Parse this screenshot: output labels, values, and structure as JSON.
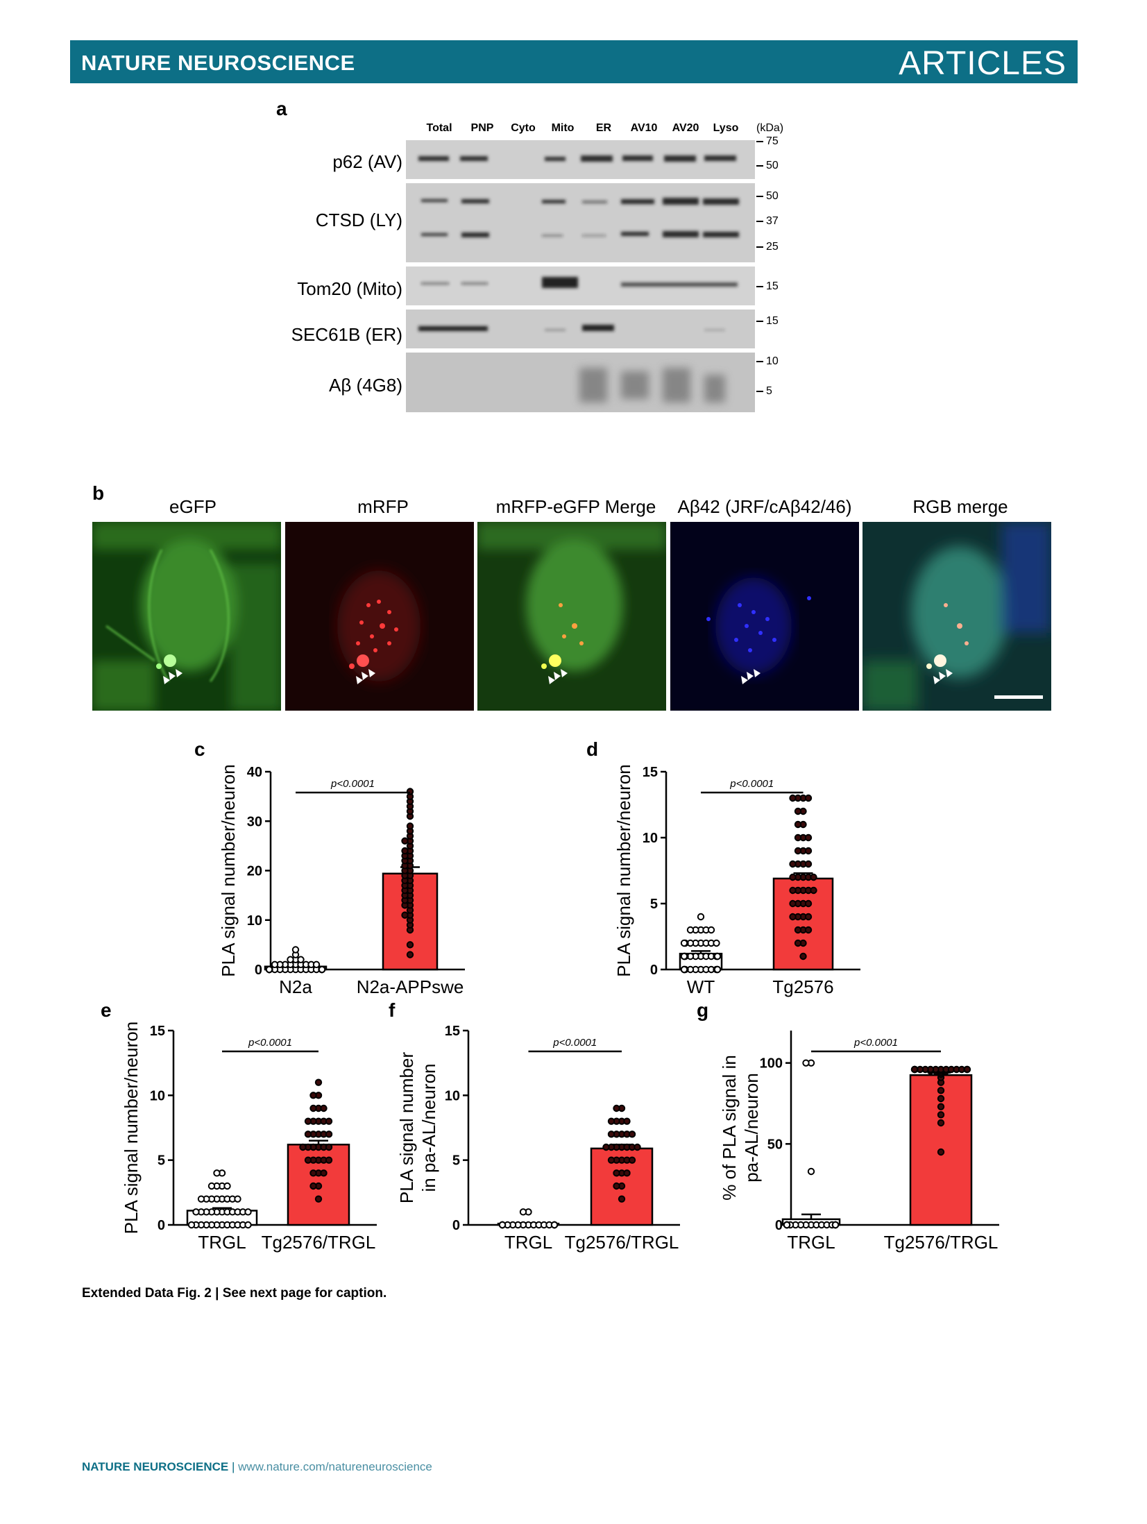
{
  "header": {
    "journal": "NATURE NEUROSCIENCE",
    "section": "ARTICLES"
  },
  "panel_a": {
    "label": "a",
    "lanes": [
      "Total",
      "PNP",
      "Cyto",
      "Mito",
      "ER",
      "AV10",
      "AV20",
      "Lyso"
    ],
    "unit": "(kDa)",
    "blots": [
      {
        "label": "p62 (AV)",
        "markers": [
          "75",
          "50"
        ]
      },
      {
        "label": "CTSD (LY)",
        "markers": [
          "50",
          "37",
          "25"
        ]
      },
      {
        "label": "Tom20 (Mito)",
        "markers": [
          "15"
        ]
      },
      {
        "label": "SEC61B (ER)",
        "markers": [
          "15"
        ]
      },
      {
        "label": "Aβ (4G8)",
        "markers": [
          "10",
          "5"
        ]
      }
    ]
  },
  "panel_b": {
    "label": "b",
    "titles": [
      "eGFP",
      "mRFP",
      "mRFP-eGFP Merge",
      "Aβ42 (JRF/cAβ42/46)",
      "RGB merge"
    ]
  },
  "chart_data": [
    {
      "panel": "c",
      "type": "bar",
      "ylabel": "PLA signal number/neuron",
      "ylim": [
        0,
        40
      ],
      "yticks": [
        "0",
        "10",
        "20",
        "30",
        "40"
      ],
      "categories": [
        "N2a",
        "N2a-APPswe"
      ],
      "values": [
        0.6,
        19.4
      ],
      "sem": [
        0.2,
        1.3
      ],
      "pvalue": "p<0.0001",
      "points": [
        [
          0,
          0,
          0,
          0,
          0,
          0,
          0,
          0,
          0,
          0,
          0,
          0,
          0,
          0,
          0,
          0,
          0,
          0,
          1,
          1,
          1,
          1,
          1,
          1,
          1,
          1,
          1,
          2,
          2,
          2,
          3,
          4
        ],
        [
          3,
          5,
          8,
          9,
          10,
          11,
          11,
          12,
          13,
          13,
          14,
          14,
          15,
          15,
          16,
          16,
          17,
          17,
          18,
          18,
          19,
          19,
          20,
          20,
          21,
          21,
          22,
          22,
          23,
          23,
          24,
          24,
          25,
          26,
          26,
          27,
          28,
          29,
          31,
          32,
          33,
          34,
          35,
          36
        ]
      ]
    },
    {
      "panel": "d",
      "type": "bar",
      "ylabel": "PLA signal number/neuron",
      "ylim": [
        0,
        15
      ],
      "yticks": [
        "0",
        "5",
        "10",
        "15"
      ],
      "categories": [
        "WT",
        "Tg2576"
      ],
      "values": [
        1.2,
        6.9
      ],
      "sem": [
        0.2,
        0.4
      ],
      "pvalue": "p<0.0001",
      "points": [
        [
          0,
          0,
          0,
          0,
          0,
          0,
          0,
          0,
          0,
          0,
          0,
          0,
          1,
          1,
          1,
          1,
          1,
          1,
          1,
          1,
          1,
          1,
          1,
          2,
          2,
          2,
          2,
          2,
          2,
          2,
          2,
          3,
          3,
          3,
          3,
          3,
          4
        ],
        [
          1,
          2,
          2,
          3,
          3,
          3,
          4,
          4,
          4,
          4,
          5,
          5,
          5,
          5,
          6,
          6,
          6,
          6,
          6,
          7,
          7,
          7,
          7,
          7,
          8,
          8,
          8,
          8,
          9,
          9,
          9,
          10,
          10,
          10,
          11,
          11,
          12,
          12,
          13,
          13,
          13,
          13
        ]
      ]
    },
    {
      "panel": "e",
      "type": "bar",
      "ylabel": "PLA signal number/neuron",
      "ylim": [
        0,
        15
      ],
      "yticks": [
        "0",
        "5",
        "10",
        "15"
      ],
      "categories": [
        "TRGL",
        "Tg2576/TRGL"
      ],
      "values": [
        1.1,
        6.2
      ],
      "sem": [
        0.2,
        0.3
      ],
      "pvalue": "p<0.0001",
      "points": [
        [
          0,
          0,
          0,
          0,
          0,
          0,
          0,
          0,
          0,
          0,
          0,
          0,
          1,
          1,
          1,
          1,
          1,
          1,
          1,
          1,
          1,
          1,
          1,
          2,
          2,
          2,
          2,
          2,
          2,
          2,
          2,
          3,
          3,
          3,
          3,
          4,
          4
        ],
        [
          2,
          3,
          3,
          4,
          4,
          4,
          5,
          5,
          5,
          5,
          5,
          6,
          6,
          6,
          6,
          6,
          6,
          7,
          7,
          7,
          7,
          7,
          8,
          8,
          8,
          8,
          8,
          9,
          9,
          9,
          10,
          10,
          11
        ]
      ]
    },
    {
      "panel": "f",
      "type": "bar",
      "ylabel": "PLA signal number in pa-AL/neuron",
      "ylim": [
        0,
        15
      ],
      "yticks": [
        "0",
        "5",
        "10",
        "15"
      ],
      "categories": [
        "TRGL",
        "Tg2576/TRGL"
      ],
      "values": [
        0.1,
        5.9
      ],
      "sem": [
        0.05,
        0.3
      ],
      "pvalue": "p<0.0001",
      "points": [
        [
          0,
          0,
          0,
          0,
          0,
          0,
          0,
          0,
          0,
          0,
          0,
          0,
          0,
          0,
          0,
          0,
          0,
          1,
          1
        ],
        [
          2,
          3,
          3,
          4,
          4,
          4,
          5,
          5,
          5,
          5,
          5,
          6,
          6,
          6,
          6,
          6,
          6,
          6,
          7,
          7,
          7,
          7,
          7,
          8,
          8,
          8,
          8,
          9,
          9
        ]
      ]
    },
    {
      "panel": "g",
      "type": "bar",
      "ylabel": "% of PLA signal in pa-AL/neuron",
      "ylim": [
        0,
        120
      ],
      "yticks": [
        "0",
        "50",
        "100"
      ],
      "categories": [
        "TRGL",
        "Tg2576/TRGL"
      ],
      "values": [
        3.5,
        92.5
      ],
      "sem": [
        3,
        1.5
      ],
      "pvalue": "p<0.0001",
      "points": [
        [
          0,
          0,
          0,
          0,
          0,
          0,
          0,
          0,
          0,
          0,
          0,
          0,
          0,
          0,
          0,
          0,
          0,
          0,
          0,
          0,
          33,
          100,
          100
        ],
        [
          45,
          63,
          68,
          73,
          78,
          83,
          88,
          91,
          93,
          94,
          95,
          95,
          95,
          95,
          96,
          96,
          96,
          96,
          96,
          96,
          96,
          96,
          96,
          96,
          96,
          96,
          96,
          96
        ]
      ]
    }
  ],
  "caption": "Extended Data Fig. 2 | See next page for caption.",
  "footer": {
    "journal": "NATURE NEUROSCIENCE",
    "separator": "|",
    "url": "www.nature.com/natureneuroscience"
  }
}
